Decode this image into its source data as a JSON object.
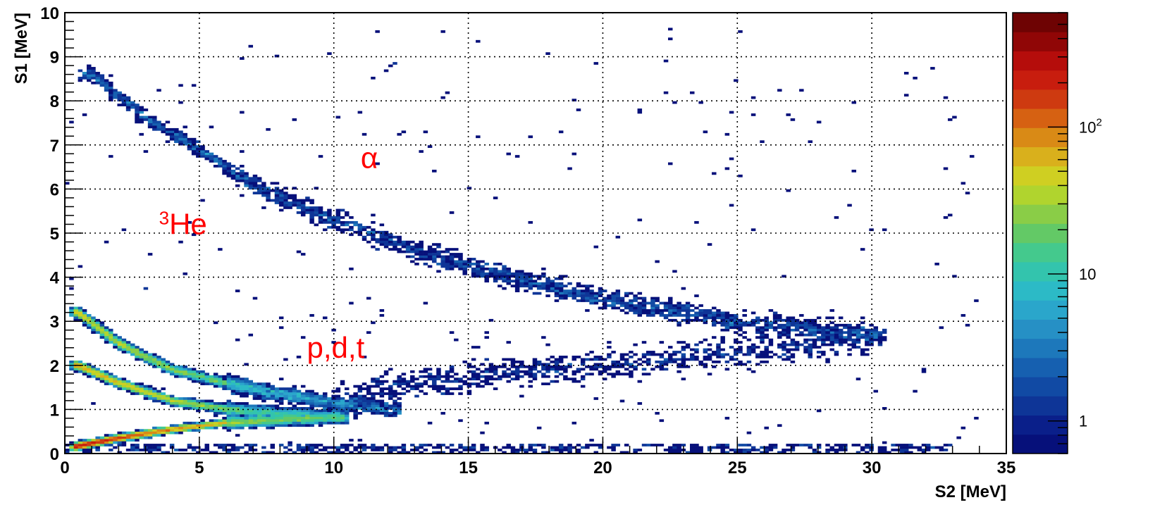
{
  "chart_data": {
    "type": "heatmap",
    "title": "",
    "xlabel": "S2 [MeV]",
    "ylabel": "S1 [MeV]",
    "xlim": [
      0,
      35
    ],
    "ylim": [
      0,
      10
    ],
    "x_ticks": [
      "0",
      "5",
      "10",
      "15",
      "20",
      "25",
      "30",
      "35"
    ],
    "y_ticks": [
      "0",
      "1",
      "2",
      "3",
      "4",
      "5",
      "6",
      "7",
      "8",
      "9",
      "10"
    ],
    "grid": true,
    "colorbar": {
      "scale": "log",
      "range": [
        0.6,
        600
      ],
      "tick_labels": [
        {
          "value": 1,
          "label": "1"
        },
        {
          "value": 10,
          "label": "10"
        },
        {
          "value": 100,
          "label": "10",
          "sup": "2"
        }
      ],
      "colors": [
        "#06107a",
        "#0a1f8a",
        "#0e3597",
        "#114aa4",
        "#1660b0",
        "#1d78bb",
        "#2690c5",
        "#2aa6cb",
        "#2cbac6",
        "#33c4ad",
        "#44c98d",
        "#63c966",
        "#8acd47",
        "#b0d42e",
        "#cfcf22",
        "#d9b01c",
        "#d98a16",
        "#d66112",
        "#ce3a10",
        "#c81d0e",
        "#b50d0b",
        "#900606",
        "#6e0303"
      ]
    },
    "annotations": [
      {
        "text": "α",
        "x": 11.0,
        "y": 6.7
      },
      {
        "text": "He",
        "sup": "3",
        "x": 3.5,
        "y": 5.2
      },
      {
        "text": "p,d,t",
        "x": 9.0,
        "y": 2.4
      }
    ],
    "bands": [
      {
        "name": "",
        "x": [
          1,
          3,
          5,
          7,
          10,
          13,
          16,
          20,
          25,
          30
        ],
        "y": [
          8.6,
          7.6,
          6.9,
          6.1,
          5.3,
          4.6,
          4.1,
          3.5,
          3.0,
          2.7
        ]
      },
      {
        "name": "",
        "x": [
          0.5,
          2,
          4,
          6,
          8,
          10,
          12
        ],
        "y": [
          3.2,
          2.5,
          1.9,
          1.6,
          1.35,
          1.15,
          1.0
        ]
      },
      {
        "name": "",
        "x": [
          0.5,
          2,
          4,
          6,
          8,
          10
        ],
        "y": [
          2.0,
          1.6,
          1.2,
          1.0,
          0.9,
          0.85
        ]
      },
      {
        "name": "",
        "x": [
          0.3,
          2,
          4,
          6,
          8,
          10
        ],
        "y": [
          0.15,
          0.35,
          0.55,
          0.7,
          0.75,
          0.8
        ]
      },
      {
        "name": "",
        "x": [
          10,
          13,
          16,
          20,
          25,
          30
        ],
        "y": [
          1.2,
          1.6,
          1.8,
          2.0,
          2.3,
          2.6
        ]
      }
    ]
  }
}
